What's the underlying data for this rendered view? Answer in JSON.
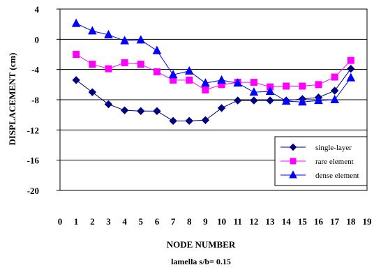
{
  "chart_data": {
    "type": "line",
    "title": "",
    "xlabel": "NODE NUMBER",
    "ylabel": "DISPLACEMENT  (cm)",
    "subtitle": "lamella  s/b= 0.15",
    "ylim": [
      -20,
      4
    ],
    "yticks": [
      4,
      0,
      -4,
      -8,
      -12,
      -16,
      -20
    ],
    "xlim": [
      0,
      19
    ],
    "xticks": [
      0,
      1,
      2,
      3,
      4,
      5,
      6,
      7,
      8,
      9,
      10,
      11,
      12,
      13,
      14,
      15,
      16,
      17,
      18,
      19
    ],
    "grid": "horizontal",
    "legend_position": "bottom-right",
    "series": [
      {
        "name": "single-layer",
        "marker": "diamond",
        "color": "#000080",
        "x": [
          1,
          2,
          3,
          4,
          5,
          6,
          7,
          8,
          9,
          10,
          11,
          12,
          13,
          14,
          15,
          16,
          17,
          18
        ],
        "values": [
          -5.4,
          -7.0,
          -8.6,
          -9.4,
          -9.5,
          -9.5,
          -10.8,
          -10.8,
          -10.7,
          -9.1,
          -8.1,
          -8.1,
          -8.1,
          -8.1,
          -7.9,
          -7.7,
          -6.8,
          -3.9
        ]
      },
      {
        "name": "rare element",
        "marker": "square",
        "color": "#ff00ff",
        "x": [
          1,
          2,
          3,
          4,
          5,
          6,
          7,
          8,
          9,
          10,
          11,
          12,
          13,
          14,
          15,
          16,
          17,
          18
        ],
        "values": [
          -2.0,
          -3.3,
          -3.9,
          -3.1,
          -3.3,
          -4.3,
          -5.4,
          -5.4,
          -6.7,
          -6.0,
          -5.7,
          -5.7,
          -6.3,
          -6.2,
          -6.2,
          -6.0,
          -5.0,
          -2.8
        ]
      },
      {
        "name": "dense element",
        "marker": "triangle",
        "color": "#0000ff",
        "x": [
          1,
          2,
          3,
          4,
          5,
          6,
          7,
          8,
          9,
          10,
          11,
          12,
          13,
          14,
          15,
          16,
          17,
          18
        ],
        "values": [
          2.1,
          1.1,
          0.6,
          -0.2,
          -0.1,
          -1.5,
          -4.7,
          -4.2,
          -5.8,
          -5.4,
          -5.8,
          -7.0,
          -6.9,
          -8.2,
          -8.3,
          -8.1,
          -8.0,
          -5.1
        ]
      }
    ]
  }
}
